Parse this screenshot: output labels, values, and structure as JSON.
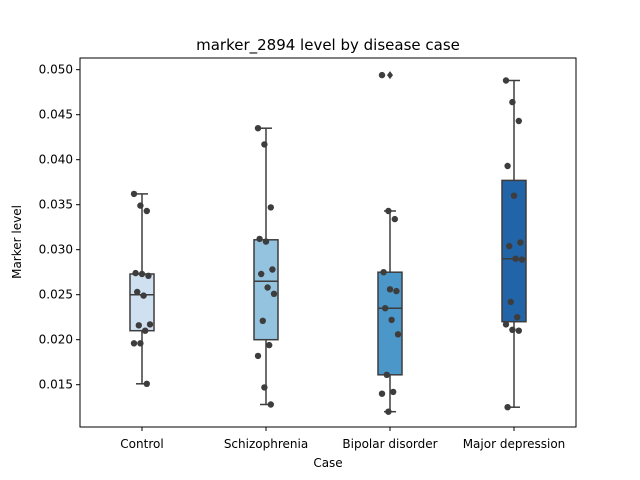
{
  "chart_data": {
    "type": "box",
    "title": "marker_2894 level by disease case",
    "xlabel": "Case",
    "ylabel": "Marker level",
    "ylim": [
      0.0103,
      0.0513
    ],
    "yticks": [
      0.015,
      0.02,
      0.025,
      0.03,
      0.035,
      0.04,
      0.045,
      0.05
    ],
    "ytick_labels": [
      "0.015",
      "0.020",
      "0.025",
      "0.030",
      "0.035",
      "0.040",
      "0.045",
      "0.050"
    ],
    "categories": [
      "Control",
      "Schizophrenia",
      "Bipolar disorder",
      "Major depression"
    ],
    "colors": [
      "#cfe0f1",
      "#93c3df",
      "#4b97c9",
      "#2264a8"
    ],
    "boxes": [
      {
        "whisker_low": 0.0151,
        "q1": 0.021,
        "median": 0.025,
        "q3": 0.0273,
        "whisker_high": 0.0362,
        "outliers": []
      },
      {
        "whisker_low": 0.0128,
        "q1": 0.02,
        "median": 0.0265,
        "q3": 0.0311,
        "whisker_high": 0.0435,
        "outliers": []
      },
      {
        "whisker_low": 0.012,
        "q1": 0.0161,
        "median": 0.0235,
        "q3": 0.0275,
        "whisker_high": 0.0343,
        "outliers": [
          0.0494
        ]
      },
      {
        "whisker_low": 0.0125,
        "q1": 0.022,
        "median": 0.029,
        "q3": 0.0377,
        "whisker_high": 0.0488,
        "outliers": []
      }
    ],
    "points": [
      [
        0.0362,
        0.0349,
        0.0343,
        0.0274,
        0.0273,
        0.0271,
        0.0253,
        0.0249,
        0.0217,
        0.0216,
        0.021,
        0.0196,
        0.0196,
        0.0151
      ],
      [
        0.0435,
        0.0417,
        0.0347,
        0.0312,
        0.0309,
        0.0278,
        0.0273,
        0.0258,
        0.0251,
        0.0221,
        0.0194,
        0.0182,
        0.0147,
        0.0128
      ],
      [
        0.0494,
        0.0343,
        0.0334,
        0.0275,
        0.0256,
        0.0254,
        0.0235,
        0.0222,
        0.0206,
        0.0161,
        0.0142,
        0.014,
        0.012
      ],
      [
        0.0488,
        0.0464,
        0.0443,
        0.0393,
        0.036,
        0.0308,
        0.0304,
        0.029,
        0.0289,
        0.0242,
        0.0225,
        0.0217,
        0.0211,
        0.021,
        0.0125
      ]
    ]
  }
}
